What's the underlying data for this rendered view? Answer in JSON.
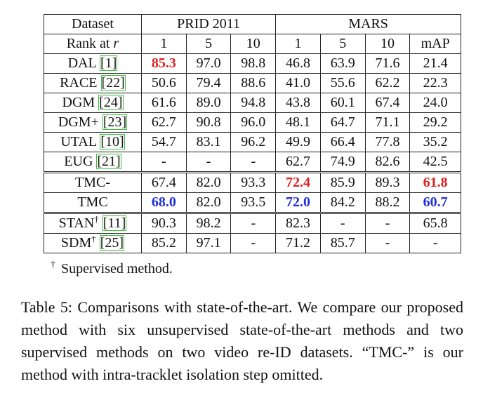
{
  "header": {
    "dataset_label": "Dataset",
    "rank_label": "Rank at r",
    "group_prid": "PRID 2011",
    "group_mars": "MARS",
    "prid_ranks": [
      "1",
      "5",
      "10"
    ],
    "mars_cols": [
      "1",
      "5",
      "10",
      "mAP"
    ]
  },
  "rows": [
    {
      "name": "DAL",
      "ref": "[1]",
      "dagger": "",
      "prid": [
        "85.3",
        "97.0",
        "98.8"
      ],
      "mars": [
        "46.8",
        "63.9",
        "71.6",
        "21.4"
      ],
      "hl": {
        "prid0": "red"
      }
    },
    {
      "name": "RACE",
      "ref": "[22]",
      "dagger": "",
      "prid": [
        "50.6",
        "79.4",
        "88.6"
      ],
      "mars": [
        "41.0",
        "55.6",
        "62.2",
        "22.3"
      ],
      "hl": {}
    },
    {
      "name": "DGM",
      "ref": "[24]",
      "dagger": "",
      "prid": [
        "61.6",
        "89.0",
        "94.8"
      ],
      "mars": [
        "43.8",
        "60.1",
        "67.4",
        "24.0"
      ],
      "hl": {}
    },
    {
      "name": "DGM+",
      "ref": "[23]",
      "dagger": "",
      "prid": [
        "62.7",
        "90.8",
        "96.0"
      ],
      "mars": [
        "48.1",
        "64.7",
        "71.1",
        "29.2"
      ],
      "hl": {}
    },
    {
      "name": "UTAL",
      "ref": "[10]",
      "dagger": "",
      "prid": [
        "54.7",
        "83.1",
        "96.2"
      ],
      "mars": [
        "49.9",
        "66.4",
        "77.8",
        "35.2"
      ],
      "hl": {}
    },
    {
      "name": "EUG",
      "ref": "[21]",
      "dagger": "",
      "prid": [
        "-",
        "-",
        "-"
      ],
      "mars": [
        "62.7",
        "74.9",
        "82.6",
        "42.5"
      ],
      "hl": {}
    },
    {
      "name": "TMC-",
      "ref": "",
      "dagger": "",
      "prid": [
        "67.4",
        "82.0",
        "93.3"
      ],
      "mars": [
        "72.4",
        "85.9",
        "89.3",
        "61.8"
      ],
      "hl": {
        "mars0": "red",
        "mars3": "red"
      }
    },
    {
      "name": "TMC",
      "ref": "",
      "dagger": "",
      "prid": [
        "68.0",
        "82.0",
        "93.5"
      ],
      "mars": [
        "72.0",
        "84.2",
        "88.2",
        "60.7"
      ],
      "hl": {
        "prid0": "blue",
        "mars0": "blue",
        "mars3": "blue"
      }
    },
    {
      "name": "STAN",
      "ref": "[11]",
      "dagger": "†",
      "prid": [
        "90.3",
        "98.2",
        "-"
      ],
      "mars": [
        "82.3",
        "-",
        "-",
        "65.8"
      ],
      "hl": {}
    },
    {
      "name": "SDM",
      "ref": "[25]",
      "dagger": "†",
      "prid": [
        "85.2",
        "97.1",
        "-"
      ],
      "mars": [
        "71.2",
        "85.7",
        "-",
        "-"
      ],
      "hl": {}
    }
  ],
  "footnote": {
    "symbol": "†",
    "text": "Supervised method."
  },
  "caption": "Table 5: Comparisons with state-of-the-art. We compare our proposed method with six unsupervised state-of-the-art methods and two supervised methods on two video re-ID datasets. “TMC-” is our method with intra-tracklet isolation step omitted.",
  "colors": {
    "red": "#e0201f",
    "blue": "#1f2fd6",
    "ref_box": "#3fbf3f"
  }
}
